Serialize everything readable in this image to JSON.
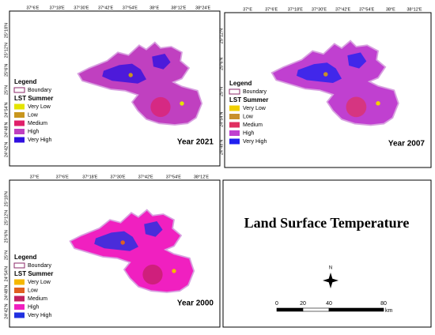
{
  "title": "Land Surface Temperature",
  "north": "N",
  "scale": {
    "labels": [
      "0",
      "20",
      "40",
      "80"
    ],
    "unit": "km"
  },
  "panels": [
    {
      "year": "Year 2021",
      "top_labels": [
        "37°6'E",
        "37°18'E",
        "37°30'E",
        "37°42'E",
        "37°54'E",
        "38°E",
        "38°12'E",
        "38°24'E"
      ],
      "left_labels": [
        "25°18'N",
        "25°12'N",
        "25°6'N",
        "25°N",
        "24°54'N",
        "24°48'N",
        "24°42'N"
      ],
      "legend": {
        "title": "Legend",
        "boundary": "Boundary",
        "subtitle": "LST Summer",
        "classes": [
          {
            "label": "Very Low",
            "color": "#e4e400"
          },
          {
            "label": "Low",
            "color": "#c8961e"
          },
          {
            "label": "Medium",
            "color": "#e0206a"
          },
          {
            "label": "High",
            "color": "#c040c0"
          },
          {
            "label": "Very High",
            "color": "#3010e0"
          }
        ]
      }
    },
    {
      "year": "Year 2007",
      "top_labels": [
        "37°E",
        "37°6'E",
        "37°18'E",
        "37°30'E",
        "37°42'E",
        "37°54'E",
        "38°E",
        "38°12'E"
      ],
      "left_labels": [
        "25°12'N",
        "25°6'N",
        "25°N",
        "24°54'N",
        "24°48'N"
      ],
      "legend": {
        "title": "Legend",
        "boundary": "Boundary",
        "subtitle": "LST Summer",
        "classes": [
          {
            "label": "Very Low",
            "color": "#f0d000"
          },
          {
            "label": "Low",
            "color": "#c8902a"
          },
          {
            "label": "Medium",
            "color": "#e03060"
          },
          {
            "label": "High",
            "color": "#c040d0"
          },
          {
            "label": "Very High",
            "color": "#2020f0"
          }
        ]
      }
    },
    {
      "year": "Year 2000",
      "top_labels": [
        "37°E",
        "37°6'E",
        "37°18'E",
        "37°30'E",
        "37°42'E",
        "37°54'E",
        "38°12'E"
      ],
      "left_labels": [
        "25°18'N",
        "25°12'N",
        "25°6'N",
        "25°N",
        "24°54'N",
        "24°48'N",
        "24°42'N"
      ],
      "legend": {
        "title": "Legend",
        "boundary": "Boundary",
        "subtitle": "LST Summer",
        "classes": [
          {
            "label": "Very Low",
            "color": "#f5b800"
          },
          {
            "label": "Low",
            "color": "#e06020"
          },
          {
            "label": "Medium",
            "color": "#c02060"
          },
          {
            "label": "High",
            "color": "#f020c0"
          },
          {
            "label": "Very High",
            "color": "#2030e0"
          }
        ]
      }
    }
  ]
}
